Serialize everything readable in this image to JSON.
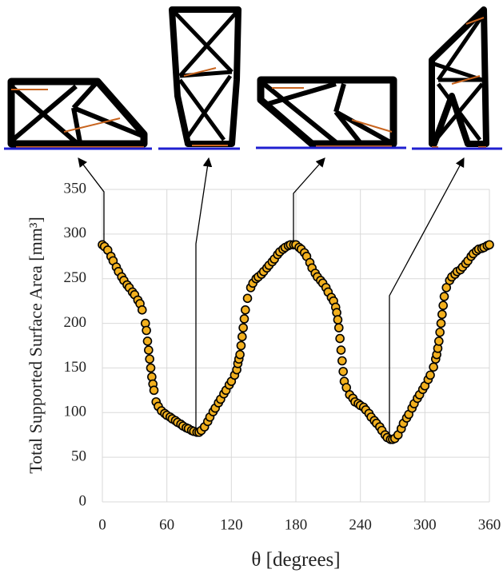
{
  "chart_data": {
    "type": "scatter",
    "ylabel": "Total Supported Surface Area [mm³]",
    "xlabel": "θ [degrees]",
    "xlim": [
      0,
      360
    ],
    "xticks": [
      0,
      60,
      120,
      180,
      240,
      300,
      360
    ],
    "ylim": [
      0,
      350
    ],
    "yticks": [
      0,
      50,
      100,
      150,
      200,
      250,
      300,
      350
    ],
    "grid": true,
    "series": [
      {
        "color": "#f2b01e",
        "x": [
          0,
          2,
          5,
          8,
          10,
          13,
          15,
          18,
          20,
          23,
          25,
          28,
          30,
          33,
          35,
          37,
          40,
          41,
          42,
          43,
          44,
          45,
          46,
          47,
          48,
          50,
          52,
          55,
          58,
          60,
          63,
          65,
          68,
          70,
          73,
          75,
          78,
          80,
          83,
          85,
          88,
          90,
          92,
          95,
          98,
          100,
          103,
          105,
          108,
          110,
          113,
          115,
          118,
          120,
          123,
          125,
          126,
          127,
          128,
          129,
          130,
          131,
          132,
          133,
          135,
          138,
          140,
          143,
          145,
          148,
          150,
          153,
          155,
          158,
          160,
          163,
          165,
          168,
          170,
          173,
          175,
          178,
          180,
          183,
          185,
          188,
          190,
          193,
          195,
          198,
          200,
          203,
          205,
          208,
          210,
          213,
          215,
          217,
          218,
          219,
          220,
          221,
          222,
          223,
          224,
          225,
          227,
          230,
          233,
          235,
          238,
          240,
          243,
          245,
          248,
          250,
          253,
          255,
          258,
          260,
          263,
          265,
          268,
          270,
          272,
          275,
          278,
          280,
          283,
          285,
          288,
          290,
          293,
          295,
          298,
          300,
          303,
          305,
          308,
          310,
          311,
          312,
          313,
          314,
          315,
          316,
          317,
          318,
          320,
          323,
          325,
          328,
          330,
          333,
          335,
          338,
          340,
          343,
          345,
          348,
          350,
          353,
          355,
          358,
          360
        ],
        "values": [
          288,
          286,
          282,
          275,
          270,
          263,
          258,
          252,
          248,
          243,
          240,
          235,
          232,
          226,
          222,
          215,
          200,
          192,
          180,
          170,
          160,
          150,
          140,
          132,
          125,
          112,
          107,
          102,
          99,
          97,
          95,
          93,
          91,
          89,
          87,
          85,
          83,
          82,
          80,
          79,
          78,
          78,
          80,
          84,
          90,
          95,
          101,
          105,
          111,
          115,
          121,
          125,
          131,
          135,
          142,
          148,
          155,
          160,
          165,
          175,
          185,
          195,
          205,
          215,
          228,
          240,
          245,
          250,
          252,
          255,
          258,
          262,
          265,
          269,
          272,
          277,
          280,
          283,
          285,
          287,
          288,
          288,
          288,
          285,
          283,
          279,
          275,
          268,
          262,
          256,
          252,
          248,
          245,
          240,
          235,
          229,
          225,
          218,
          212,
          204,
          195,
          183,
          170,
          158,
          146,
          135,
          128,
          120,
          116,
          112,
          110,
          108,
          106,
          103,
          99,
          95,
          91,
          88,
          84,
          80,
          75,
          72,
          70,
          70,
          71,
          75,
          82,
          88,
          94,
          98,
          105,
          110,
          116,
          120,
          126,
          130,
          137,
          142,
          151,
          160,
          165,
          172,
          180,
          190,
          200,
          210,
          220,
          230,
          240,
          248,
          252,
          255,
          258,
          260,
          263,
          267,
          270,
          275,
          278,
          281,
          283,
          284,
          285,
          287,
          288
        ]
      }
    ]
  }
}
